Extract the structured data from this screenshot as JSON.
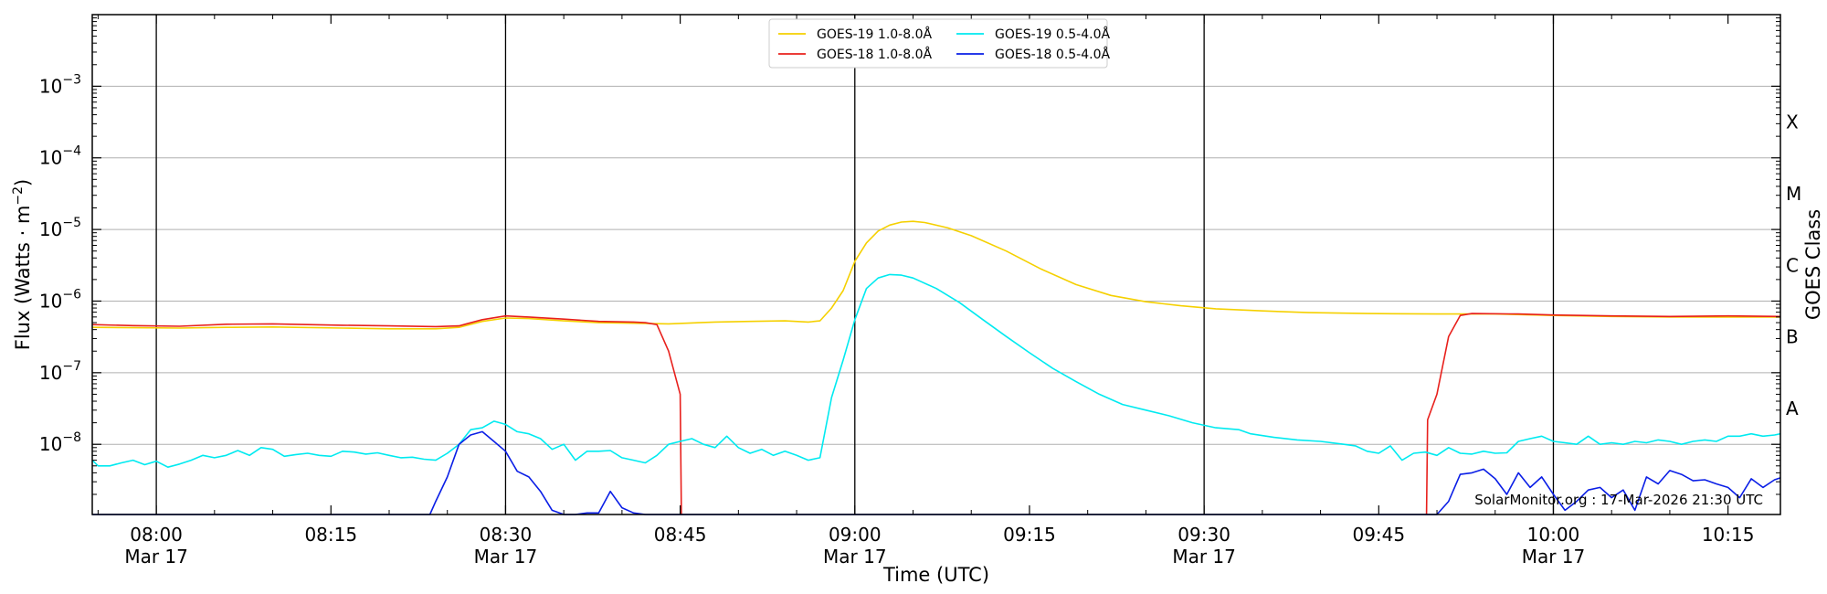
{
  "chart_data": {
    "type": "line",
    "xlabel": "Time (UTC)",
    "ylabel_main": "Flux (Watts · m",
    "ylabel_sup": "−2",
    "ylabel_close": ")",
    "right_label": "GOES Class",
    "credit": "SolarMonitor.org : 17-Mar-2026 21:30 UTC",
    "x_range_minutes": [
      474.5,
      619.5
    ],
    "y_log_range": [
      -8.98,
      -2.0
    ],
    "y_scale": "log",
    "grid": "horizontal at decades",
    "legend_position": "top-center",
    "x_ticks": [
      {
        "minute": 480,
        "time": "08:00",
        "date": "Mar 17",
        "vline": true
      },
      {
        "minute": 495,
        "time": "08:15",
        "date": "",
        "vline": false
      },
      {
        "minute": 510,
        "time": "08:30",
        "date": "Mar 17",
        "vline": true
      },
      {
        "minute": 525,
        "time": "08:45",
        "date": "",
        "vline": false
      },
      {
        "minute": 540,
        "time": "09:00",
        "date": "Mar 17",
        "vline": true
      },
      {
        "minute": 555,
        "time": "09:15",
        "date": "",
        "vline": false
      },
      {
        "minute": 570,
        "time": "09:30",
        "date": "Mar 17",
        "vline": true
      },
      {
        "minute": 585,
        "time": "09:45",
        "date": "",
        "vline": false
      },
      {
        "minute": 600,
        "time": "10:00",
        "date": "Mar 17",
        "vline": true
      },
      {
        "minute": 615,
        "time": "10:15",
        "date": "",
        "vline": false
      }
    ],
    "y_ticks": [
      {
        "exp": -8,
        "base": "10",
        "sup": "−8"
      },
      {
        "exp": -7,
        "base": "10",
        "sup": "−7"
      },
      {
        "exp": -6,
        "base": "10",
        "sup": "−6"
      },
      {
        "exp": -5,
        "base": "10",
        "sup": "−5"
      },
      {
        "exp": -4,
        "base": "10",
        "sup": "−4"
      },
      {
        "exp": -3,
        "base": "10",
        "sup": "−3"
      }
    ],
    "goes_classes": [
      {
        "label": "A",
        "exp": -7.5
      },
      {
        "label": "B",
        "exp": -6.5
      },
      {
        "label": "C",
        "exp": -5.5
      },
      {
        "label": "M",
        "exp": -4.5
      },
      {
        "label": "X",
        "exp": -3.5
      }
    ],
    "series": [
      {
        "name": "GOES-19 1.0-8.0Å",
        "color": "#f5d000",
        "points": [
          [
            474.5,
            4.3e-07
          ],
          [
            478,
            4.25e-07
          ],
          [
            482,
            4.2e-07
          ],
          [
            486,
            4.3e-07
          ],
          [
            490,
            4.35e-07
          ],
          [
            496,
            4.2e-07
          ],
          [
            500,
            4.1e-07
          ],
          [
            504,
            4.1e-07
          ],
          [
            506,
            4.3e-07
          ],
          [
            508,
            5.2e-07
          ],
          [
            510,
            5.8e-07
          ],
          [
            512,
            5.7e-07
          ],
          [
            515,
            5.3e-07
          ],
          [
            518,
            5e-07
          ],
          [
            521,
            4.9e-07
          ],
          [
            524,
            4.8e-07
          ],
          [
            528,
            5.1e-07
          ],
          [
            531,
            5.2e-07
          ],
          [
            534,
            5.3e-07
          ],
          [
            536,
            5.1e-07
          ],
          [
            537,
            5.3e-07
          ],
          [
            538,
            8e-07
          ],
          [
            539,
            1.4e-06
          ],
          [
            540,
            3.6e-06
          ],
          [
            541,
            6.5e-06
          ],
          [
            542,
            9.5e-06
          ],
          [
            543,
            1.15e-05
          ],
          [
            544,
            1.27e-05
          ],
          [
            545,
            1.3e-05
          ],
          [
            546,
            1.25e-05
          ],
          [
            548,
            1.05e-05
          ],
          [
            550,
            8.2e-06
          ],
          [
            553,
            5e-06
          ],
          [
            556,
            2.8e-06
          ],
          [
            559,
            1.7e-06
          ],
          [
            562,
            1.2e-06
          ],
          [
            565,
            9.8e-07
          ],
          [
            568,
            8.6e-07
          ],
          [
            571,
            7.8e-07
          ],
          [
            575,
            7.3e-07
          ],
          [
            579,
            6.9e-07
          ],
          [
            584,
            6.7e-07
          ],
          [
            590,
            6.6e-07
          ],
          [
            595,
            6.6e-07
          ],
          [
            600,
            6.3e-07
          ],
          [
            605,
            6.1e-07
          ],
          [
            610,
            6e-07
          ],
          [
            615,
            6e-07
          ],
          [
            619.5,
            6e-07
          ]
        ]
      },
      {
        "name": "GOES-18 1.0-8.0Å",
        "color": "#e8201c",
        "points": [
          [
            474.5,
            4.7e-07
          ],
          [
            478,
            4.55e-07
          ],
          [
            482,
            4.45e-07
          ],
          [
            486,
            4.75e-07
          ],
          [
            490,
            4.8e-07
          ],
          [
            496,
            4.6e-07
          ],
          [
            500,
            4.5e-07
          ],
          [
            504,
            4.4e-07
          ],
          [
            506,
            4.5e-07
          ],
          [
            508,
            5.5e-07
          ],
          [
            510,
            6.2e-07
          ],
          [
            512,
            6e-07
          ],
          [
            515,
            5.6e-07
          ],
          [
            518,
            5.2e-07
          ],
          [
            521,
            5.1e-07
          ],
          [
            522,
            5e-07
          ],
          [
            523,
            4.7e-07
          ],
          [
            524,
            2e-07
          ],
          [
            525,
            5e-08
          ],
          [
            525.1,
            1e-09
          ]
        ],
        "points2": [
          [
            589.1,
            1e-09
          ],
          [
            589.2,
            2.2e-08
          ],
          [
            590,
            5e-08
          ],
          [
            591,
            3.2e-07
          ],
          [
            592,
            6.3e-07
          ],
          [
            593,
            6.7e-07
          ],
          [
            597,
            6.6e-07
          ],
          [
            600,
            6.4e-07
          ],
          [
            605,
            6.2e-07
          ],
          [
            610,
            6.1e-07
          ],
          [
            615,
            6.2e-07
          ],
          [
            619.5,
            6.1e-07
          ]
        ]
      },
      {
        "name": "GOES-19 0.5-4.0Å",
        "color": "#00eaf0",
        "points": [
          [
            474.5,
            6e-09
          ],
          [
            475,
            5e-09
          ],
          [
            476,
            5e-09
          ],
          [
            477,
            5.5e-09
          ],
          [
            478,
            6e-09
          ],
          [
            479,
            5.2e-09
          ],
          [
            480,
            5.8e-09
          ],
          [
            481,
            4.8e-09
          ],
          [
            482,
            5.3e-09
          ],
          [
            483,
            6e-09
          ],
          [
            484,
            7e-09
          ],
          [
            485,
            6.5e-09
          ],
          [
            486,
            7e-09
          ],
          [
            487,
            8.2e-09
          ],
          [
            488,
            7e-09
          ],
          [
            489,
            9e-09
          ],
          [
            490,
            8.5e-09
          ],
          [
            491,
            6.8e-09
          ],
          [
            492,
            7.2e-09
          ],
          [
            493,
            7.5e-09
          ],
          [
            494,
            7e-09
          ],
          [
            495,
            6.8e-09
          ],
          [
            496,
            8e-09
          ],
          [
            497,
            7.8e-09
          ],
          [
            498,
            7.3e-09
          ],
          [
            499,
            7.6e-09
          ],
          [
            500,
            7e-09
          ],
          [
            501,
            6.5e-09
          ],
          [
            502,
            6.6e-09
          ],
          [
            503,
            6.2e-09
          ],
          [
            504,
            6e-09
          ],
          [
            505,
            7.5e-09
          ],
          [
            506,
            1e-08
          ],
          [
            507,
            1.6e-08
          ],
          [
            508,
            1.7e-08
          ],
          [
            509,
            2.1e-08
          ],
          [
            510,
            1.9e-08
          ],
          [
            511,
            1.5e-08
          ],
          [
            512,
            1.4e-08
          ],
          [
            513,
            1.2e-08
          ],
          [
            514,
            8.5e-09
          ],
          [
            515,
            1e-08
          ],
          [
            516,
            6e-09
          ],
          [
            517,
            8e-09
          ],
          [
            518,
            8e-09
          ],
          [
            519,
            8.2e-09
          ],
          [
            520,
            6.5e-09
          ],
          [
            521,
            6e-09
          ],
          [
            522,
            5.5e-09
          ],
          [
            523,
            7e-09
          ],
          [
            524,
            1e-08
          ],
          [
            525,
            1.1e-08
          ],
          [
            526,
            1.2e-08
          ],
          [
            527,
            1e-08
          ],
          [
            528,
            9e-09
          ],
          [
            529,
            1.3e-08
          ],
          [
            530,
            9e-09
          ],
          [
            531,
            7.5e-09
          ],
          [
            532,
            8.5e-09
          ],
          [
            533,
            7e-09
          ],
          [
            534,
            8e-09
          ],
          [
            535,
            7e-09
          ],
          [
            536,
            6e-09
          ],
          [
            537,
            6.5e-09
          ],
          [
            538,
            4.5e-08
          ],
          [
            539,
            1.5e-07
          ],
          [
            540,
            5.5e-07
          ],
          [
            541,
            1.5e-06
          ],
          [
            542,
            2.1e-06
          ],
          [
            543,
            2.35e-06
          ],
          [
            544,
            2.3e-06
          ],
          [
            545,
            2.1e-06
          ],
          [
            547,
            1.5e-06
          ],
          [
            549,
            9.5e-07
          ],
          [
            551,
            5.5e-07
          ],
          [
            553,
            3.2e-07
          ],
          [
            555,
            1.9e-07
          ],
          [
            557,
            1.15e-07
          ],
          [
            559,
            7.5e-08
          ],
          [
            561,
            5e-08
          ],
          [
            563,
            3.6e-08
          ],
          [
            565,
            3e-08
          ],
          [
            567,
            2.5e-08
          ],
          [
            569,
            2e-08
          ],
          [
            571,
            1.7e-08
          ],
          [
            573,
            1.6e-08
          ],
          [
            574,
            1.4e-08
          ],
          [
            576,
            1.25e-08
          ],
          [
            578,
            1.15e-08
          ],
          [
            580,
            1.1e-08
          ],
          [
            582,
            1e-08
          ],
          [
            583,
            9.5e-09
          ],
          [
            584,
            8e-09
          ],
          [
            585,
            7.5e-09
          ],
          [
            586,
            9.5e-09
          ],
          [
            587,
            6e-09
          ],
          [
            588,
            7.5e-09
          ],
          [
            589,
            7.8e-09
          ],
          [
            590,
            7e-09
          ],
          [
            591,
            9e-09
          ],
          [
            592,
            7.5e-09
          ],
          [
            593,
            7.3e-09
          ],
          [
            594,
            8e-09
          ],
          [
            595,
            7.5e-09
          ],
          [
            596,
            7.6e-09
          ],
          [
            597,
            1.1e-08
          ],
          [
            598,
            1.2e-08
          ],
          [
            599,
            1.3e-08
          ],
          [
            600,
            1.1e-08
          ],
          [
            601,
            1.05e-08
          ],
          [
            602,
            1e-08
          ],
          [
            603,
            1.3e-08
          ],
          [
            604,
            1e-08
          ],
          [
            605,
            1.05e-08
          ],
          [
            606,
            1e-08
          ],
          [
            607,
            1.1e-08
          ],
          [
            608,
            1.05e-08
          ],
          [
            609,
            1.15e-08
          ],
          [
            610,
            1.1e-08
          ],
          [
            611,
            1e-08
          ],
          [
            612,
            1.1e-08
          ],
          [
            613,
            1.15e-08
          ],
          [
            614,
            1.1e-08
          ],
          [
            615,
            1.3e-08
          ],
          [
            616,
            1.3e-08
          ],
          [
            617,
            1.4e-08
          ],
          [
            618,
            1.3e-08
          ],
          [
            619,
            1.35e-08
          ],
          [
            619.5,
            1.4e-08
          ]
        ]
      },
      {
        "name": "GOES-18 0.5-4.0Å",
        "color": "#0a1ee6",
        "points": [
          [
            474.5,
            1e-09
          ],
          [
            503.5,
            1e-09
          ],
          [
            504,
            1.6e-09
          ],
          [
            505,
            3.5e-09
          ],
          [
            506,
            1e-08
          ],
          [
            507,
            1.35e-08
          ],
          [
            508,
            1.5e-08
          ],
          [
            509,
            1.1e-08
          ],
          [
            510,
            8e-09
          ],
          [
            511,
            4.2e-09
          ],
          [
            512,
            3.5e-09
          ],
          [
            513,
            2.2e-09
          ],
          [
            514,
            1.2e-09
          ],
          [
            515,
            1e-09
          ],
          [
            516,
            1e-09
          ],
          [
            517,
            1.1e-09
          ],
          [
            518,
            1.1e-09
          ],
          [
            519,
            2.2e-09
          ],
          [
            520,
            1.3e-09
          ],
          [
            521,
            1.1e-09
          ],
          [
            522,
            1e-09
          ],
          [
            589.5,
            1e-09
          ],
          [
            590,
            1e-09
          ],
          [
            591,
            1.6e-09
          ],
          [
            592,
            3.8e-09
          ],
          [
            593,
            4e-09
          ],
          [
            594,
            4.5e-09
          ],
          [
            595,
            3.3e-09
          ],
          [
            596,
            2e-09
          ],
          [
            597,
            4e-09
          ],
          [
            598,
            2.5e-09
          ],
          [
            599,
            3.5e-09
          ],
          [
            600,
            2e-09
          ],
          [
            601,
            1.2e-09
          ],
          [
            602,
            1.6e-09
          ],
          [
            603,
            2.3e-09
          ],
          [
            604,
            2.5e-09
          ],
          [
            605,
            1.8e-09
          ],
          [
            606,
            2.3e-09
          ],
          [
            607,
            1.2e-09
          ],
          [
            608,
            3.5e-09
          ],
          [
            609,
            2.8e-09
          ],
          [
            610,
            4.3e-09
          ],
          [
            611,
            3.8e-09
          ],
          [
            612,
            3.1e-09
          ],
          [
            613,
            3.2e-09
          ],
          [
            614,
            2.8e-09
          ],
          [
            615,
            2.5e-09
          ],
          [
            616,
            1.8e-09
          ],
          [
            617,
            3.3e-09
          ],
          [
            618,
            2.5e-09
          ],
          [
            619,
            3.2e-09
          ],
          [
            619.5,
            3.4e-09
          ]
        ]
      }
    ]
  }
}
